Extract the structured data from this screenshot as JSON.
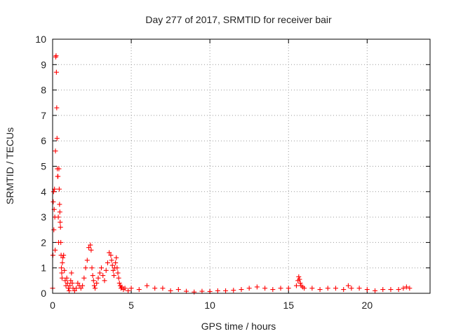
{
  "chart_data": {
    "type": "scatter",
    "title": "Day 277 of 2017, SRMTID for receiver bair",
    "xlabel": "GPS time / hours",
    "ylabel": "SRMTID / TECUs",
    "xlim": [
      0,
      24
    ],
    "ylim": [
      0,
      10
    ],
    "xticks": [
      0,
      5,
      10,
      15,
      20
    ],
    "yticks": [
      0,
      1,
      2,
      3,
      4,
      5,
      6,
      7,
      8,
      9,
      10
    ],
    "grid": true,
    "marker": "plus",
    "color": "#ff0000",
    "series": [
      {
        "x": [
          0.0,
          0.02,
          0.04,
          0.06,
          0.08,
          0.1,
          0.12,
          0.14,
          0.16,
          0.18,
          0.2,
          0.22,
          0.24,
          0.26,
          0.28,
          0.3,
          0.32,
          0.34,
          0.36,
          0.38,
          0.4,
          0.42,
          0.44,
          0.46,
          0.48,
          0.5,
          0.52,
          0.54,
          0.56,
          0.58,
          0.6,
          0.62,
          0.65,
          0.7,
          0.75,
          0.8,
          0.85,
          0.9,
          0.95,
          1.0,
          1.05,
          1.1,
          1.15,
          1.2,
          1.25,
          1.3,
          1.4,
          1.5,
          1.6,
          1.7,
          1.8,
          1.9,
          2.0,
          2.1,
          2.2,
          2.3,
          2.4,
          2.45,
          2.5,
          2.55,
          2.6,
          2.65,
          2.7,
          2.8,
          2.9,
          3.0,
          3.1,
          3.2,
          3.3,
          3.4,
          3.5,
          3.6,
          3.7,
          3.75,
          3.8,
          3.85,
          3.9,
          3.95,
          4.0,
          4.05,
          4.1,
          4.15,
          4.2,
          4.25,
          4.3,
          4.35,
          4.4,
          4.5,
          4.6,
          4.8,
          5.0,
          5.5,
          6.0,
          6.5,
          7.0,
          7.5,
          8.0,
          8.5,
          9.0,
          9.5,
          10.0,
          10.5,
          11.0,
          11.5,
          12.0,
          12.5,
          13.0,
          13.5,
          14.0,
          14.5,
          15.0,
          15.5,
          15.6,
          15.65,
          15.7,
          15.75,
          15.8,
          15.9,
          16.0,
          16.5,
          17.0,
          17.5,
          18.0,
          18.5,
          18.8,
          19.0,
          19.5,
          20.0,
          20.5,
          21.0,
          21.5,
          22.0,
          22.3,
          22.5,
          22.7
        ],
        "y": [
          0.2,
          1.5,
          3.6,
          4.0,
          2.5,
          3.3,
          4.1,
          3.0,
          1.7,
          5.6,
          9.3,
          9.35,
          8.7,
          7.3,
          6.1,
          4.9,
          4.6,
          4.6,
          3.0,
          2.0,
          4.9,
          4.1,
          3.5,
          3.2,
          2.8,
          2.6,
          2.0,
          1.5,
          1.0,
          0.8,
          0.6,
          1.2,
          1.4,
          1.5,
          0.9,
          0.5,
          0.3,
          0.6,
          0.4,
          0.2,
          0.1,
          0.3,
          0.5,
          0.8,
          0.4,
          0.2,
          0.1,
          0.2,
          0.4,
          0.3,
          0.2,
          0.3,
          0.6,
          1.0,
          1.3,
          1.8,
          1.9,
          1.7,
          1.0,
          0.7,
          0.5,
          0.3,
          0.2,
          0.4,
          0.6,
          0.8,
          1.0,
          0.7,
          0.5,
          0.9,
          1.2,
          1.6,
          1.5,
          1.3,
          1.1,
          0.9,
          0.7,
          1.0,
          1.2,
          1.4,
          1.0,
          0.8,
          0.6,
          0.4,
          0.3,
          0.2,
          0.25,
          0.15,
          0.2,
          0.1,
          0.2,
          0.15,
          0.3,
          0.2,
          0.2,
          0.1,
          0.15,
          0.08,
          0.05,
          0.08,
          0.07,
          0.1,
          0.1,
          0.12,
          0.15,
          0.2,
          0.25,
          0.2,
          0.15,
          0.2,
          0.2,
          0.3,
          0.5,
          0.65,
          0.55,
          0.4,
          0.3,
          0.25,
          0.2,
          0.2,
          0.15,
          0.2,
          0.2,
          0.15,
          0.3,
          0.2,
          0.2,
          0.15,
          0.1,
          0.15,
          0.15,
          0.15,
          0.2,
          0.25,
          0.2
        ]
      }
    ]
  }
}
